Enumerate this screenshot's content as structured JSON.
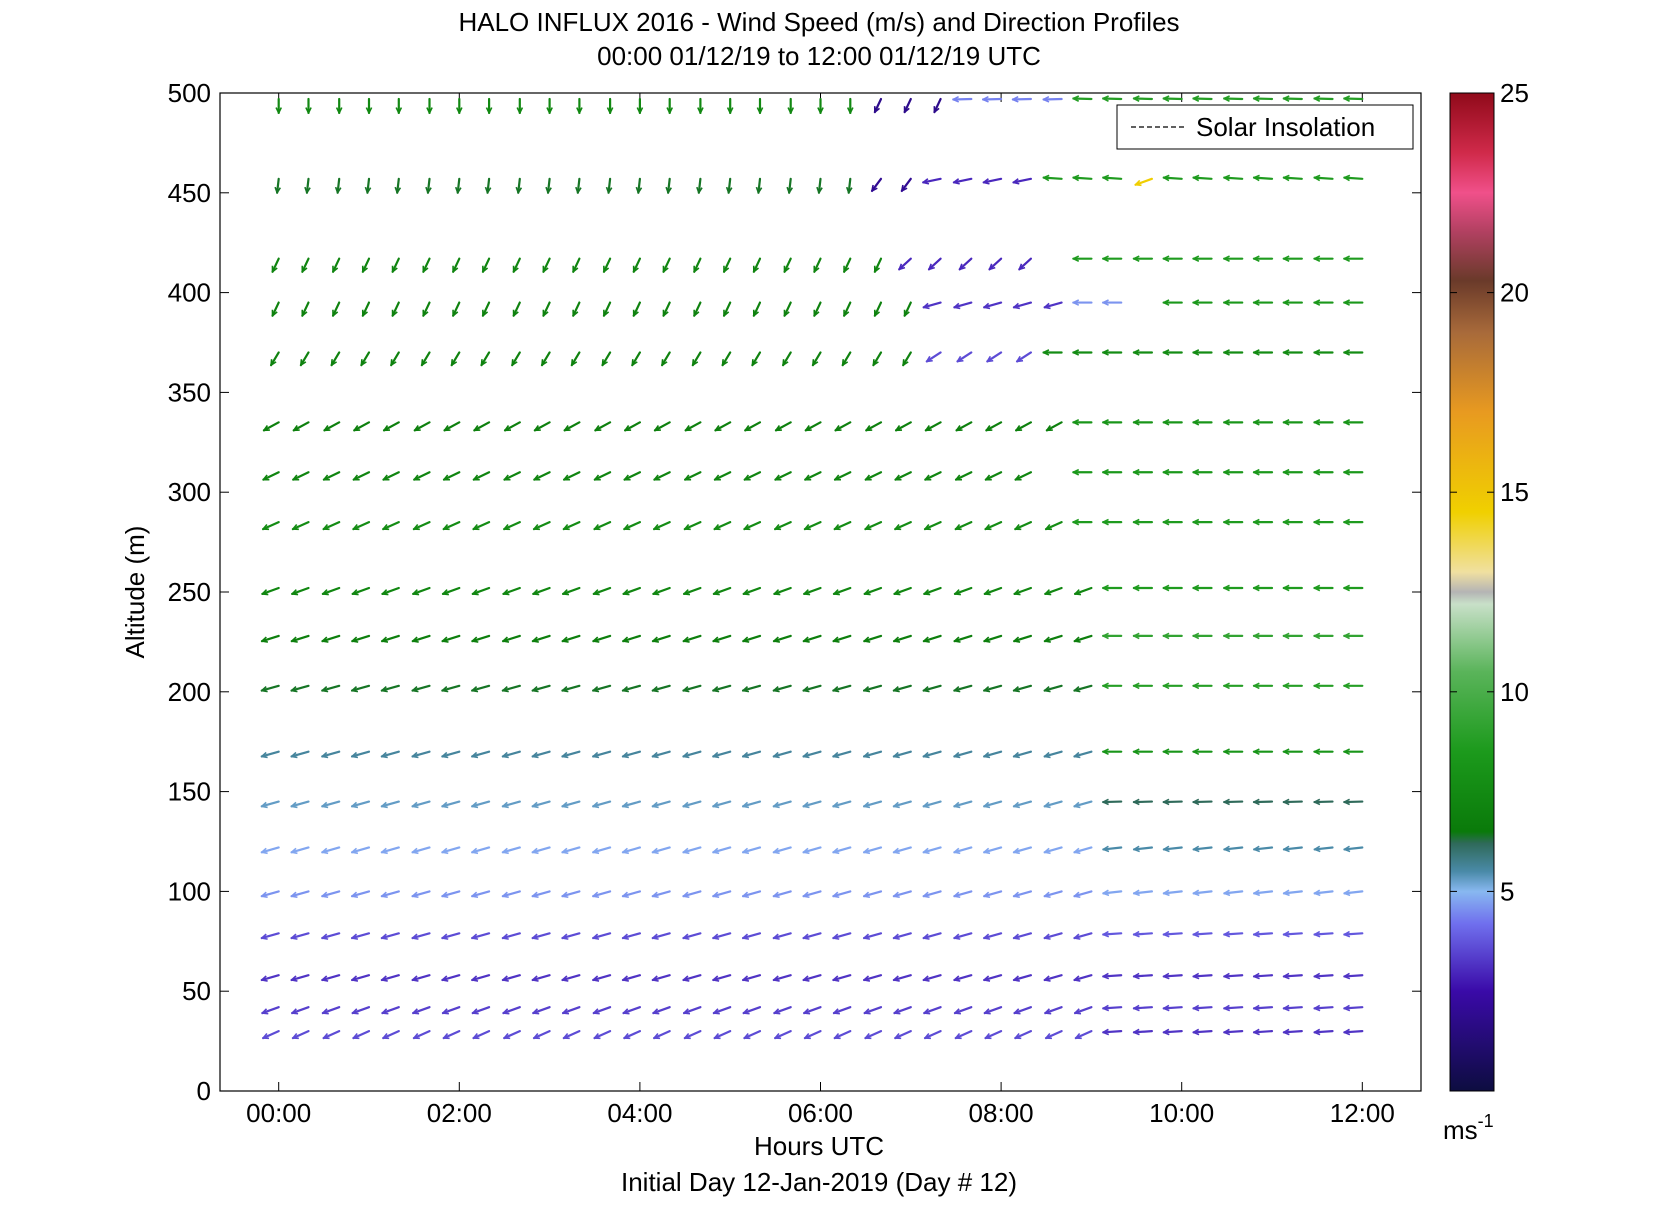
{
  "chart_data": {
    "type": "quiver",
    "title": "HALO INFLUX 2016 - Wind Speed (m/s) and Direction Profiles",
    "subtitle": "00:00 01/12/19 to 12:00 01/12/19  UTC",
    "xlabel": "Hours UTC",
    "xlabel2": "Initial Day 12-Jan-2019 (Day # 12)",
    "ylabel": "Altitude (m)",
    "xlim": [
      -0.65,
      12.65
    ],
    "ylim": [
      0,
      500
    ],
    "x_ticks": [
      {
        "value": 0,
        "label": "00:00"
      },
      {
        "value": 2,
        "label": "02:00"
      },
      {
        "value": 4,
        "label": "04:00"
      },
      {
        "value": 6,
        "label": "06:00"
      },
      {
        "value": 8,
        "label": "08:00"
      },
      {
        "value": 10,
        "label": "10:00"
      },
      {
        "value": 12,
        "label": "12:00"
      }
    ],
    "y_ticks": [
      {
        "value": 0,
        "label": "0"
      },
      {
        "value": 50,
        "label": "50"
      },
      {
        "value": 100,
        "label": "100"
      },
      {
        "value": 150,
        "label": "150"
      },
      {
        "value": 200,
        "label": "200"
      },
      {
        "value": 250,
        "label": "250"
      },
      {
        "value": 300,
        "label": "300"
      },
      {
        "value": 350,
        "label": "350"
      },
      {
        "value": 400,
        "label": "400"
      },
      {
        "value": 450,
        "label": "450"
      },
      {
        "value": 500,
        "label": "500"
      }
    ],
    "legend": {
      "label": "Solar Insolation",
      "position": "top-right",
      "style": "dashed"
    },
    "colorbar": {
      "min": 0,
      "max": 25,
      "unit": "ms",
      "unit_exp": "-1",
      "ticks": [
        {
          "value": 5,
          "label": "5"
        },
        {
          "value": 10,
          "label": "10"
        },
        {
          "value": 15,
          "label": "15"
        },
        {
          "value": 20,
          "label": "20"
        },
        {
          "value": 25,
          "label": "25"
        }
      ],
      "stops": [
        {
          "v": 0,
          "c": "#0d0d40"
        },
        {
          "v": 2.5,
          "c": "#3a0aa8"
        },
        {
          "v": 4.2,
          "c": "#7070ee"
        },
        {
          "v": 5,
          "c": "#88b8f0"
        },
        {
          "v": 5.5,
          "c": "#4a8aa8"
        },
        {
          "v": 6.2,
          "c": "#2f6a5a"
        },
        {
          "v": 6.5,
          "c": "#0a7a0a"
        },
        {
          "v": 8.5,
          "c": "#1c9a1c"
        },
        {
          "v": 10.5,
          "c": "#5ab45a"
        },
        {
          "v": 12.2,
          "c": "#c8e0c8"
        },
        {
          "v": 12.5,
          "c": "#b4b4b4"
        },
        {
          "v": 13,
          "c": "#f0e0a0"
        },
        {
          "v": 14.5,
          "c": "#f0d000"
        },
        {
          "v": 17,
          "c": "#e89a20"
        },
        {
          "v": 19,
          "c": "#a86a3a"
        },
        {
          "v": 20.3,
          "c": "#6a3a2a"
        },
        {
          "v": 21.5,
          "c": "#b04060"
        },
        {
          "v": 22.5,
          "c": "#f0508a"
        },
        {
          "v": 23.5,
          "c": "#d02a4a"
        },
        {
          "v": 25,
          "c": "#900a1a"
        }
      ]
    },
    "times": [
      0,
      0.33,
      0.67,
      1,
      1.33,
      1.67,
      2,
      2.33,
      2.67,
      3,
      3.33,
      3.67,
      4,
      4.33,
      4.67,
      5,
      5.33,
      5.67,
      6,
      6.33,
      6.67,
      7,
      7.33,
      7.67,
      8,
      8.33,
      8.67,
      9,
      9.33,
      9.67,
      10,
      10.33,
      10.67,
      11,
      11.33,
      11.67,
      12
    ],
    "altitudes": [
      30,
      42,
      58,
      79,
      100,
      122,
      145,
      170,
      203,
      228,
      252,
      285,
      310,
      335,
      370,
      395,
      417,
      457,
      497
    ],
    "levels": [
      {
        "altitude": 30,
        "segments": [
          [
            0,
            9,
            3.6,
            240,
            1.5
          ],
          [
            9.33,
            12,
            3.2,
            265,
            1.5
          ]
        ]
      },
      {
        "altitude": 42,
        "segments": [
          [
            0,
            9,
            3.4,
            245,
            1.5
          ],
          [
            9.33,
            12,
            3.4,
            265,
            1.5
          ]
        ]
      },
      {
        "altitude": 58,
        "segments": [
          [
            0,
            9,
            3.2,
            250,
            1.5
          ],
          [
            9.33,
            12,
            3.2,
            265,
            1.5
          ]
        ]
      },
      {
        "altitude": 79,
        "segments": [
          [
            0,
            9,
            3.6,
            250,
            1.5
          ],
          [
            9.33,
            12,
            3.8,
            265,
            1.5
          ]
        ]
      },
      {
        "altitude": 100,
        "segments": [
          [
            0,
            9,
            4.6,
            250,
            1.5
          ],
          [
            9.33,
            12,
            4.8,
            262,
            1.5
          ]
        ]
      },
      {
        "altitude": 122,
        "segments": [
          [
            0,
            9,
            4.8,
            250,
            1.5
          ],
          [
            9.33,
            12,
            5.5,
            262,
            1.5
          ]
        ]
      },
      {
        "altitude": 145,
        "segments": [
          [
            0,
            9,
            5.3,
            250,
            1.5
          ],
          [
            9.33,
            12,
            6.2,
            268,
            1.5
          ]
        ]
      },
      {
        "altitude": 170,
        "segments": [
          [
            0,
            9,
            5.6,
            250,
            1.5
          ],
          [
            9.33,
            12,
            8.2,
            270,
            1.5
          ]
        ]
      },
      {
        "altitude": 203,
        "segments": [
          [
            0,
            9,
            6.4,
            250,
            1.5
          ],
          [
            9.33,
            12,
            8.8,
            270,
            1.5
          ]
        ]
      },
      {
        "altitude": 228,
        "segments": [
          [
            0,
            9,
            6.8,
            248,
            1.5
          ],
          [
            9.33,
            12,
            9.2,
            270,
            1.5
          ]
        ]
      },
      {
        "altitude": 252,
        "segments": [
          [
            0,
            9,
            7.3,
            245,
            1.5
          ],
          [
            9.33,
            12,
            8.6,
            270,
            1.5
          ]
        ]
      },
      {
        "altitude": 285,
        "segments": [
          [
            0,
            8.67,
            7.6,
            240,
            1.5
          ],
          [
            9,
            12,
            8.6,
            270,
            1.5
          ]
        ]
      },
      {
        "altitude": 310,
        "segments": [
          [
            0,
            8.33,
            7.2,
            238,
            1.5
          ],
          [
            9,
            12,
            8.4,
            270,
            1.5
          ]
        ]
      },
      {
        "altitude": 335,
        "segments": [
          [
            0,
            8.67,
            6.9,
            235,
            1.5
          ],
          [
            9,
            12,
            8.2,
            270,
            1.5
          ]
        ]
      },
      {
        "altitude": 370,
        "segments": [
          [
            0,
            7,
            7.0,
            205,
            1.5
          ],
          [
            7.33,
            8.33,
            3.6,
            230,
            1.5
          ],
          [
            8.67,
            12,
            7.6,
            270,
            1.5
          ]
        ]
      },
      {
        "altitude": 395,
        "segments": [
          [
            0,
            7,
            7.0,
            200,
            1.5
          ],
          [
            7.33,
            8.67,
            3.2,
            250,
            1.5
          ],
          [
            9,
            9.33,
            4.6,
            270,
            1.5
          ],
          [
            10,
            12,
            8.4,
            270,
            1.5
          ]
        ]
      },
      {
        "altitude": 417,
        "segments": [
          [
            0,
            6.67,
            7.2,
            200,
            1.5
          ],
          [
            7,
            8.33,
            3.0,
            220,
            1.5
          ],
          [
            9,
            12,
            8.6,
            270,
            1.5
          ]
        ]
      },
      {
        "altitude": 457,
        "segments": [
          [
            0,
            6.33,
            6.4,
            185,
            1.5
          ],
          [
            6.67,
            7,
            2.0,
            210,
            1.5
          ],
          [
            7.33,
            8.33,
            3.0,
            255,
            1.5
          ],
          [
            8.67,
            12,
            8.6,
            275,
            1.5
          ]
        ]
      },
      {
        "altitude": 497,
        "segments": [
          [
            0,
            6.33,
            7.4,
            180,
            1.5
          ],
          [
            6.67,
            7.33,
            1.8,
            200,
            1.5
          ],
          [
            7.67,
            8.67,
            4.4,
            268,
            1.5
          ],
          [
            9,
            12,
            8.8,
            272,
            1.5
          ]
        ]
      }
    ],
    "highlight": [
      {
        "t": 9.67,
        "altitude": 457,
        "speed": 14.6,
        "dir": 245,
        "len": 1.5
      }
    ]
  }
}
